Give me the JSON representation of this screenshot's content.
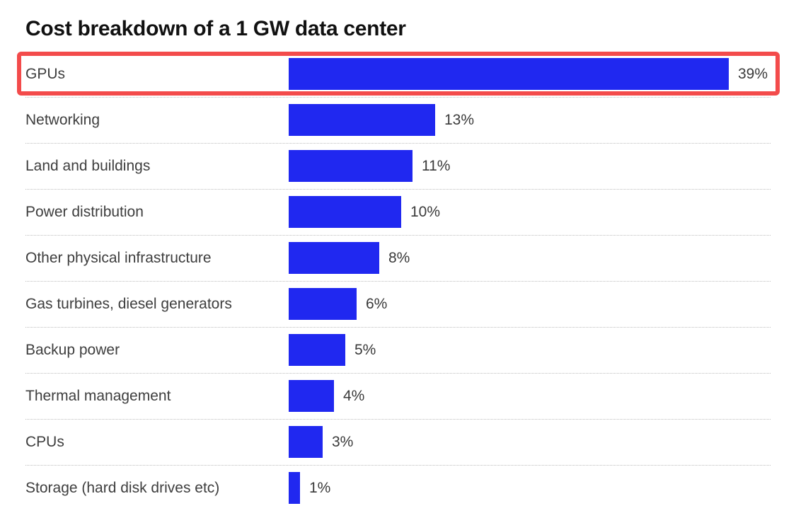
{
  "title": "Cost breakdown of a 1 GW data center",
  "chart_data": {
    "type": "bar",
    "orientation": "horizontal",
    "title": "Cost breakdown of a 1 GW data center",
    "xlabel": "",
    "ylabel": "",
    "categories": [
      "GPUs",
      "Networking",
      "Land and buildings",
      "Power distribution",
      "Other physical infrastructure",
      "Gas turbines, diesel generators",
      "Backup power",
      "Thermal management",
      "CPUs",
      "Storage (hard disk drives etc)"
    ],
    "values": [
      39,
      13,
      11,
      10,
      8,
      6,
      5,
      4,
      3,
      1
    ],
    "value_labels": [
      "39%",
      "13%",
      "11%",
      "10%",
      "8%",
      "6%",
      "5%",
      "4%",
      "3%",
      "1%"
    ],
    "unit": "percent",
    "xlim": [
      0,
      41
    ],
    "legend": "none",
    "grid": "dotted horizontal separators between rows",
    "bar_color": "#2028F0",
    "highlighted_category": "GPUs",
    "highlight_style": "red rectangle outline around entire GPUs row",
    "highlight_color": "#F34B4B"
  },
  "colors": {
    "background": "#FFFFFF",
    "bar": "#2028F0",
    "highlight_border": "#F34B4B",
    "title_text": "#111111",
    "label_text": "#3E3E3E",
    "value_text": "#3A3A3A",
    "separator": "#BDBDBD"
  }
}
